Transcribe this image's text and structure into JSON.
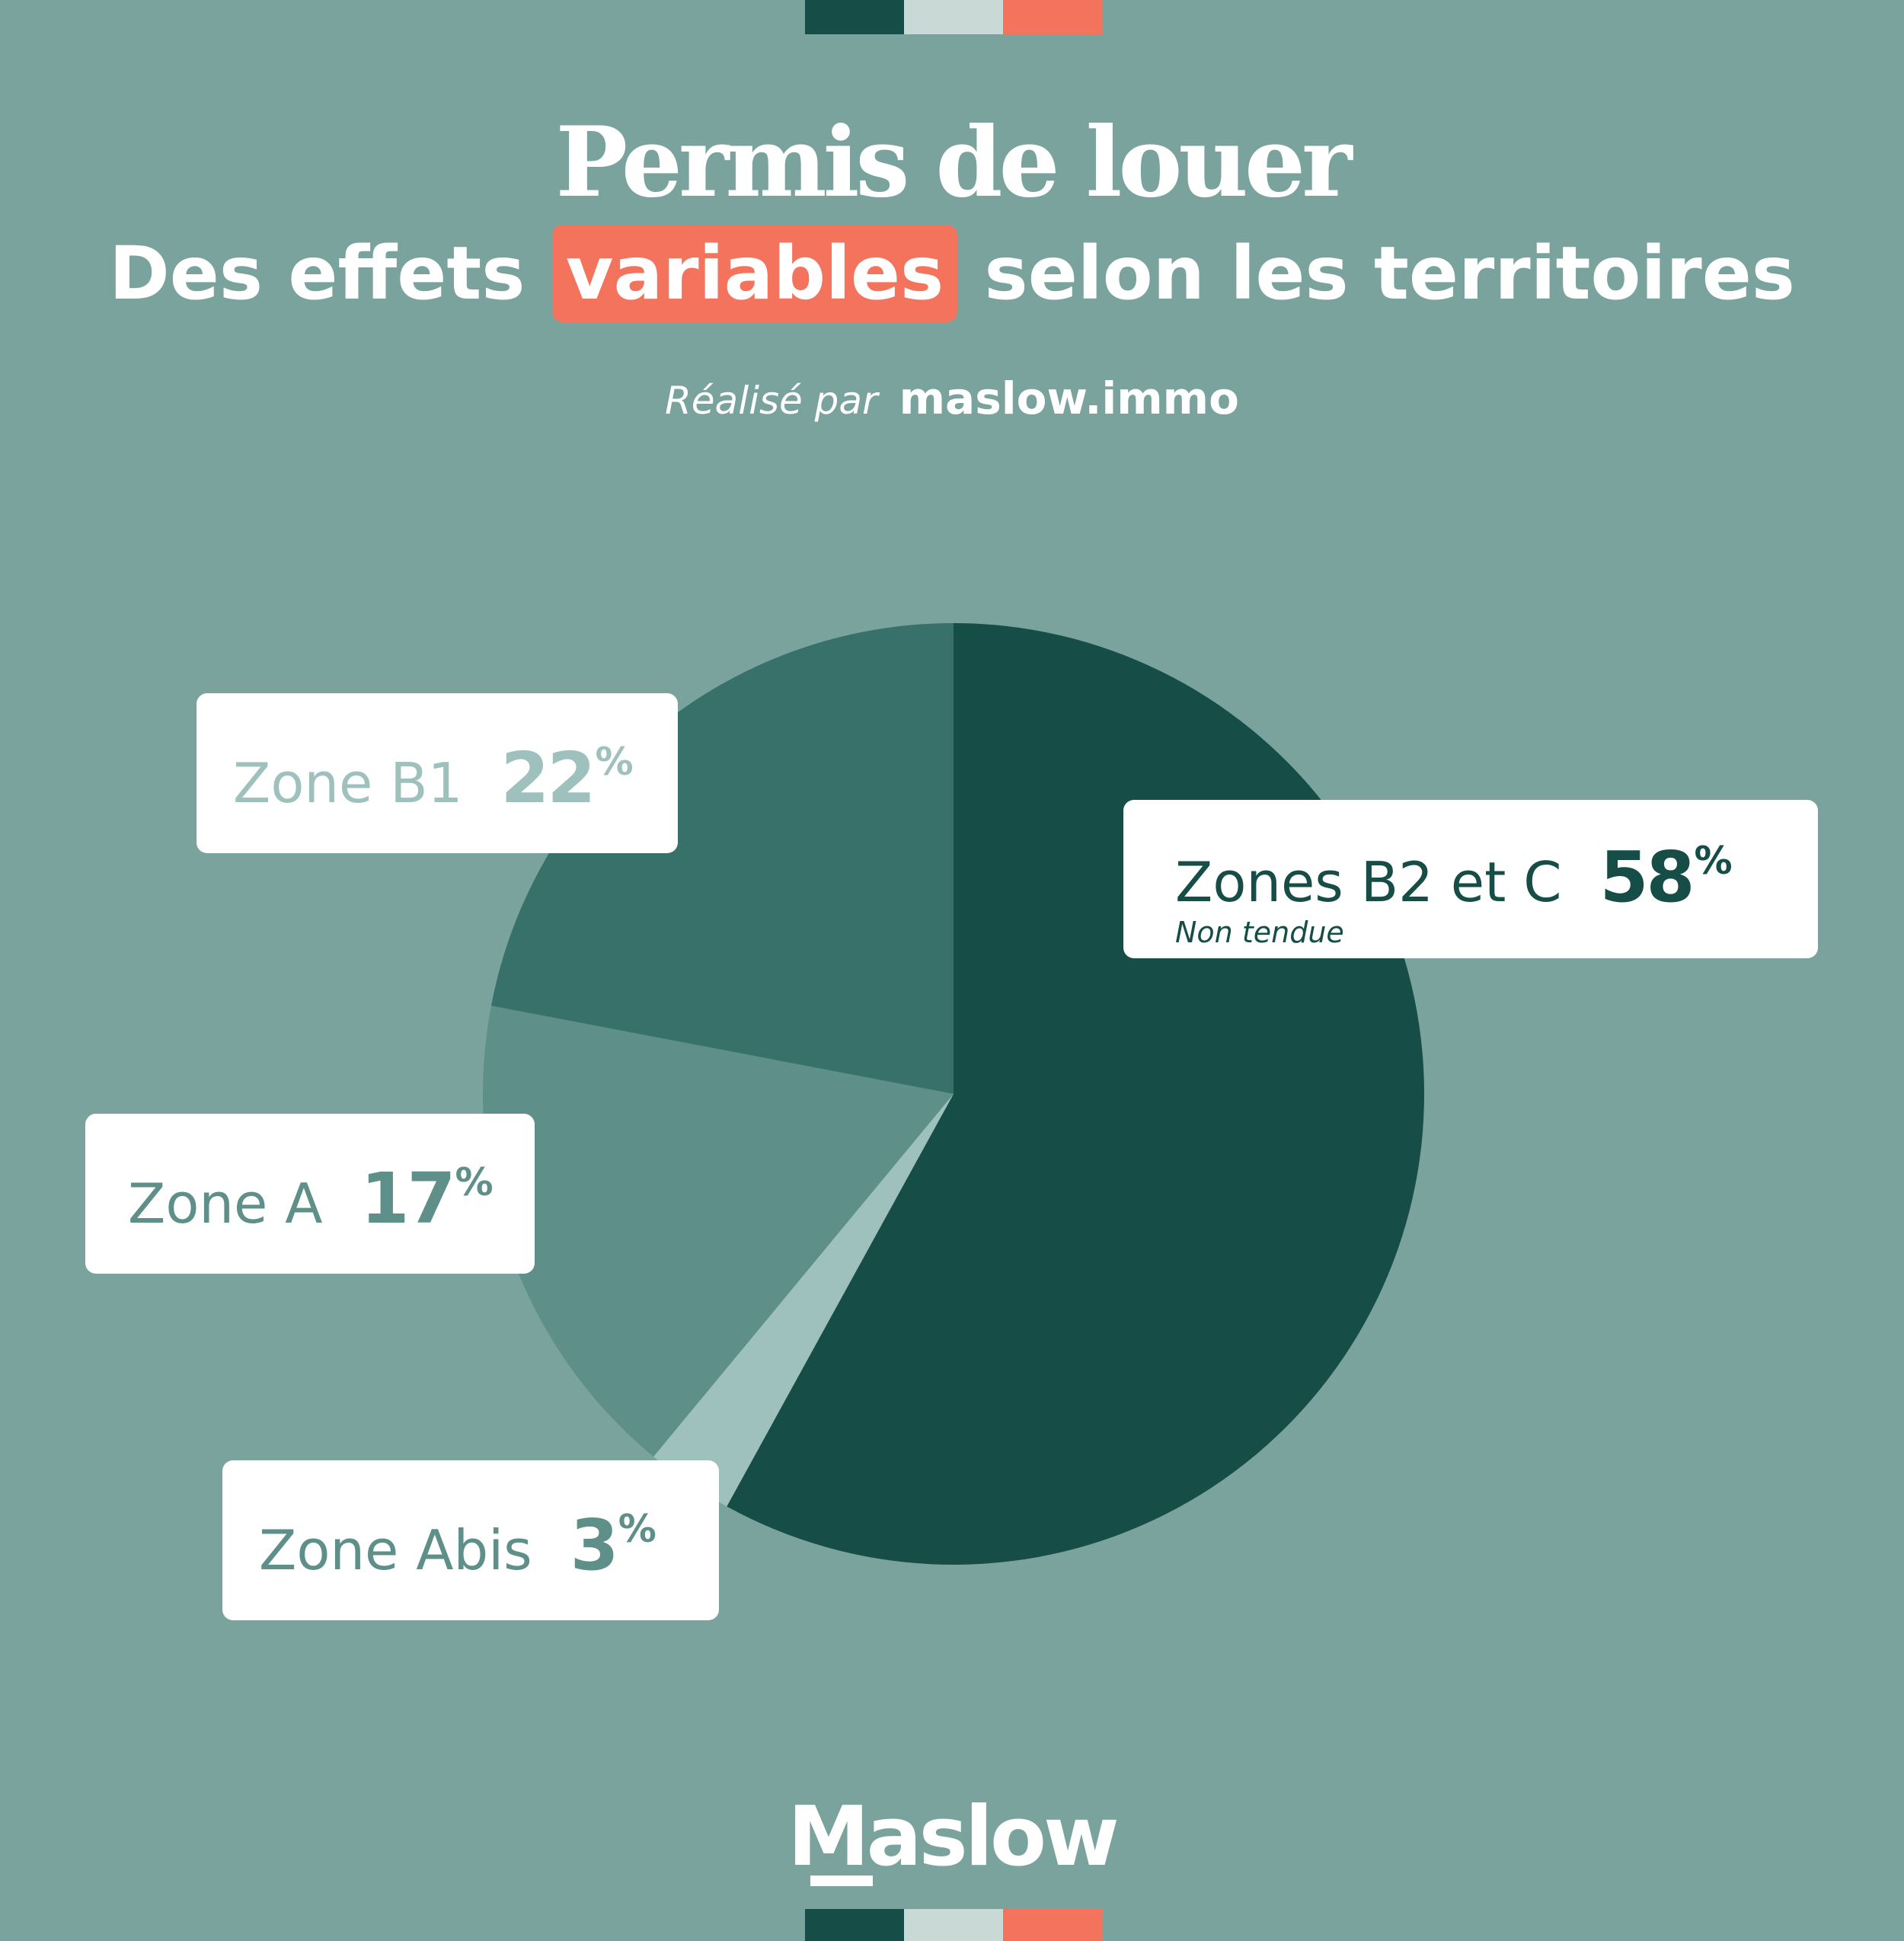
{
  "header": {
    "title": "Permis de louer",
    "subtitle_before": "Des effets",
    "subtitle_highlight": "variables",
    "subtitle_after": "selon les territoires",
    "credit_prefix": "Réalisé par",
    "credit_site": "maslow.immo"
  },
  "colors": {
    "background": "#7aa39d",
    "highlight": "#f4735c",
    "flag": [
      "#164d46",
      "#c8d9d6",
      "#f4735c"
    ]
  },
  "logo": {
    "text": "Maslow"
  },
  "chart_data": {
    "type": "pie",
    "unit": "%",
    "slices": [
      {
        "label": "Zones B2 et C",
        "sublabel": "Non tendue",
        "value": 58,
        "color": "#164d46",
        "text_color": "#164d46"
      },
      {
        "label": "Zone Abis",
        "value": 3,
        "color": "#9fc1bd",
        "text_color": "#5e8f88"
      },
      {
        "label": "Zone A",
        "value": 17,
        "color": "#5e8f88",
        "text_color": "#5e8f88"
      },
      {
        "label": "Zone B1",
        "value": 22,
        "color": "#38716a",
        "text_color": "#9fc1bd"
      }
    ]
  }
}
